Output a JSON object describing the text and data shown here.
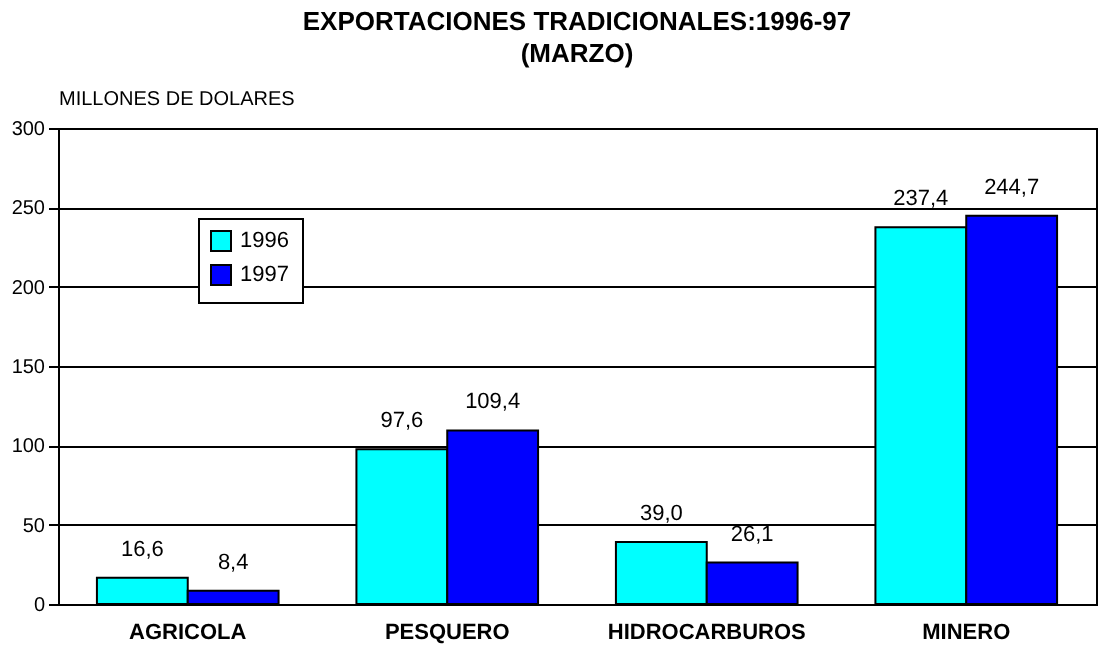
{
  "chart_data": {
    "type": "bar",
    "title": "EXPORTACIONES TRADICIONALES:1996-97",
    "subtitle": "(MARZO)",
    "ylabel": "MILLONES DE DOLARES",
    "categories": [
      "AGRICOLA",
      "PESQUERO",
      "HIDROCARBUROS",
      "MINERO"
    ],
    "series": [
      {
        "name": "1996",
        "color": "#00ffff",
        "values": [
          16.6,
          97.6,
          39.0,
          237.4
        ],
        "value_labels": [
          "16,6",
          "97,6",
          "39,0",
          "237,4"
        ]
      },
      {
        "name": "1997",
        "color": "#0000ff",
        "values": [
          8.4,
          109.4,
          26.1,
          244.7
        ],
        "value_labels": [
          "8,4",
          "109,4",
          "26,1",
          "244,7"
        ]
      }
    ],
    "ylim": [
      0,
      300
    ],
    "yticks": [
      0,
      50,
      100,
      150,
      200,
      250,
      300
    ],
    "grid": "y",
    "legend": "top left"
  }
}
